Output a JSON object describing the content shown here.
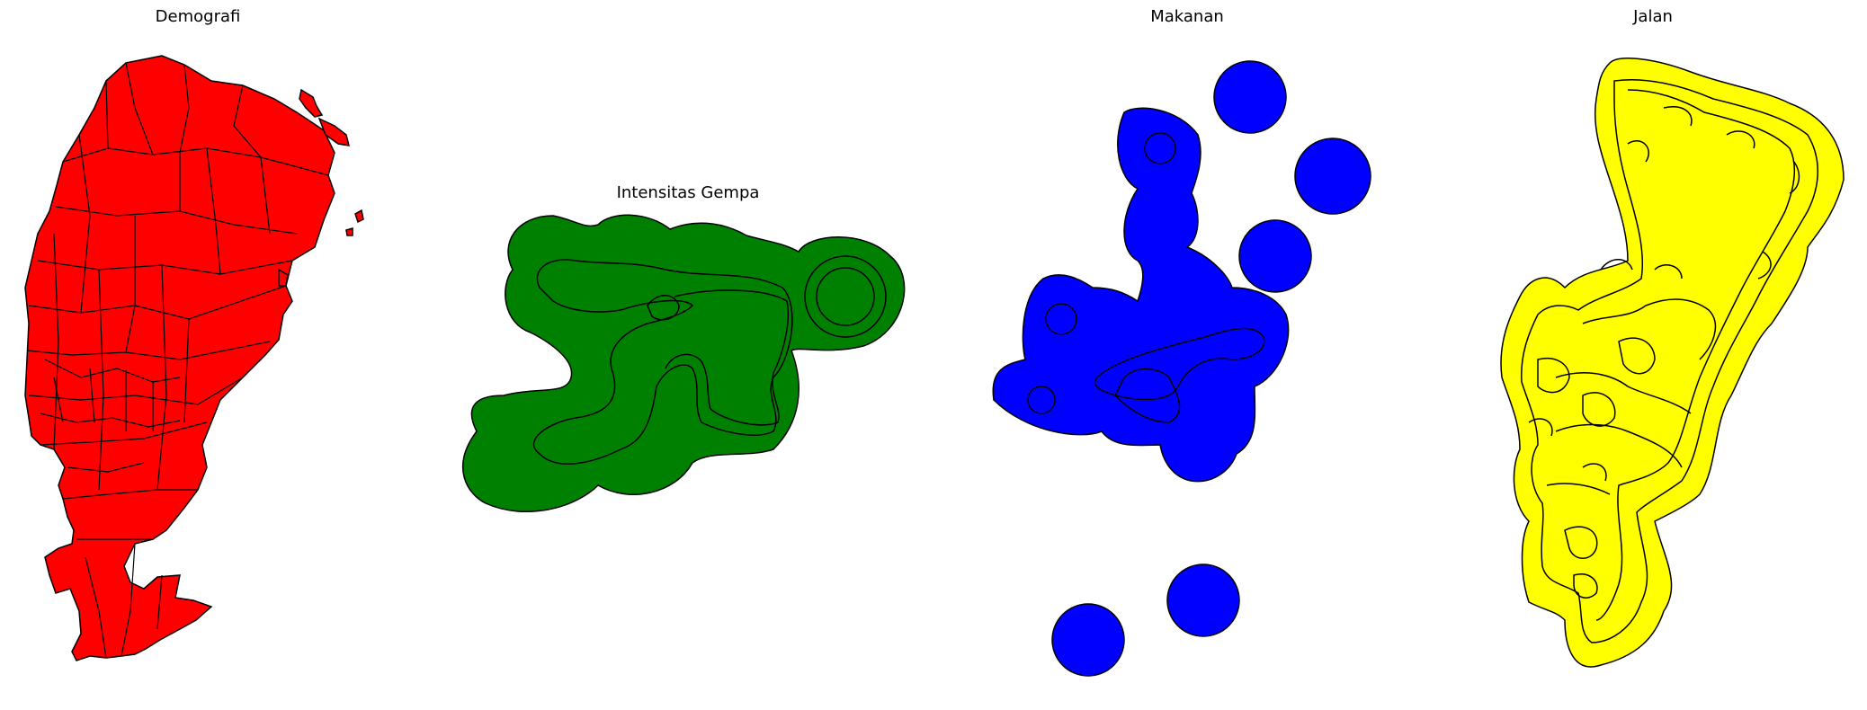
{
  "figure": {
    "panels": [
      {
        "id": "demografi",
        "title": "Demografi",
        "fill_color": "#ff0000",
        "edge_color": "#000000"
      },
      {
        "id": "intensitas_gempa",
        "title": "Intensitas Gempa",
        "fill_color": "#008000",
        "edge_color": "#000000"
      },
      {
        "id": "makanan",
        "title": "Makanan",
        "fill_color": "#0000ff",
        "edge_color": "#000000"
      },
      {
        "id": "jalan",
        "title": "Jalan",
        "fill_color": "#ffff00",
        "edge_color": "#000000"
      }
    ]
  }
}
